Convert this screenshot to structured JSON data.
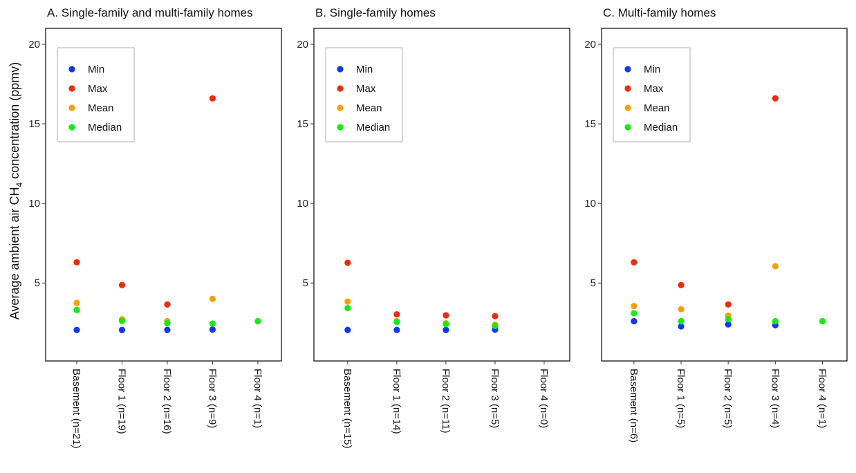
{
  "colors": {
    "Min": "#1038f0",
    "Max": "#f02a0c",
    "Mean": "#f5a00a",
    "Median": "#12ec12"
  },
  "ylabel": {
    "prefix": "Average ambient air CH",
    "subscript": "4",
    "suffix": " concentration (ppmv)"
  },
  "chart_data": [
    {
      "type": "scatter",
      "title": "A. Single-family and multi-family homes",
      "categories": [
        "Basement (n=21)",
        "Floor 1 (n=19)",
        "Floor 2 (n=16)",
        "Floor 3 (n=9)",
        "Floor 4 (n=1)"
      ],
      "ylim": [
        0.1,
        21
      ],
      "yticks": [
        5,
        10,
        15,
        20
      ],
      "grid": false,
      "legend": "top-left",
      "series": [
        {
          "name": "Min",
          "values": [
            2.05,
            2.05,
            2.05,
            2.07,
            null
          ]
        },
        {
          "name": "Max",
          "values": [
            6.3,
            4.87,
            3.65,
            16.6,
            null
          ]
        },
        {
          "name": "Mean",
          "values": [
            3.75,
            2.72,
            2.6,
            4.0,
            null
          ]
        },
        {
          "name": "Median",
          "values": [
            3.3,
            2.62,
            2.47,
            2.45,
            2.6
          ]
        }
      ]
    },
    {
      "type": "scatter",
      "title": "B. Single-family homes",
      "categories": [
        "Basement (n=15)",
        "Floor 1 (n=14)",
        "Floor 2 (n=11)",
        "Floor 3 (n=5)",
        "Floor 4 (n=0)"
      ],
      "ylim": [
        0.1,
        21
      ],
      "yticks": [
        5,
        10,
        15,
        20
      ],
      "grid": false,
      "legend": "top-left",
      "series": [
        {
          "name": "Min",
          "values": [
            2.05,
            2.05,
            2.05,
            2.07,
            null
          ]
        },
        {
          "name": "Max",
          "values": [
            6.27,
            3.03,
            2.97,
            2.92,
            null
          ]
        },
        {
          "name": "Mean",
          "values": [
            3.83,
            2.6,
            2.47,
            2.38,
            null
          ]
        },
        {
          "name": "Median",
          "values": [
            3.42,
            2.55,
            2.42,
            2.3,
            null
          ]
        }
      ]
    },
    {
      "type": "scatter",
      "title": "C. Multi-family homes",
      "categories": [
        "Basement (n=6)",
        "Floor 1 (n=5)",
        "Floor 2 (n=5)",
        "Floor 3 (n=4)",
        "Floor 4 (n=1)"
      ],
      "ylim": [
        0.1,
        21
      ],
      "yticks": [
        5,
        10,
        15,
        20
      ],
      "grid": false,
      "legend": "top-left",
      "series": [
        {
          "name": "Min",
          "values": [
            2.6,
            2.27,
            2.4,
            2.35,
            null
          ]
        },
        {
          "name": "Max",
          "values": [
            6.3,
            4.87,
            3.65,
            16.6,
            null
          ]
        },
        {
          "name": "Mean",
          "values": [
            3.55,
            3.35,
            2.95,
            6.05,
            null
          ]
        },
        {
          "name": "Median",
          "values": [
            3.1,
            2.6,
            2.72,
            2.6,
            2.6
          ]
        }
      ]
    }
  ]
}
